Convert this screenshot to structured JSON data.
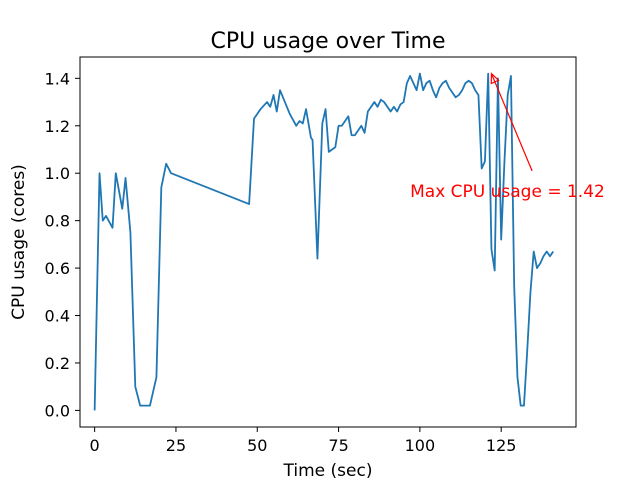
{
  "chart_data": {
    "type": "line",
    "title": "CPU usage over Time",
    "xlabel": "Time (sec)",
    "ylabel": "CPU usage (cores)",
    "xlim": [
      -4.5,
      148
    ],
    "ylim": [
      -0.07,
      1.49
    ],
    "x_ticks": [
      0,
      25,
      50,
      75,
      100,
      125
    ],
    "y_ticks": [
      0.0,
      0.2,
      0.4,
      0.6,
      0.8,
      1.0,
      1.2,
      1.4
    ],
    "x_tick_labels": [
      "0",
      "25",
      "50",
      "75",
      "100",
      "125"
    ],
    "y_tick_labels": [
      "0.0",
      "0.2",
      "0.4",
      "0.6",
      "0.8",
      "1.0",
      "1.2",
      "1.4"
    ],
    "grid": false,
    "series": [
      {
        "color": "#1f77b4",
        "x": [
          0,
          1.5,
          2.5,
          3.5,
          5.5,
          6.5,
          8.5,
          9.5,
          11,
          12.5,
          14,
          17,
          19,
          20.5,
          22,
          23.5,
          47.5,
          49,
          51,
          53,
          54,
          55,
          56,
          57,
          58.5,
          60,
          62,
          63,
          64,
          65,
          66.5,
          67,
          68.5,
          70,
          71,
          72,
          73,
          74,
          75,
          76,
          78,
          79,
          80,
          82,
          83,
          84,
          86,
          87,
          88,
          89,
          91,
          92,
          93,
          94,
          95,
          96,
          97,
          98,
          99,
          100,
          101,
          102,
          103,
          104,
          105,
          106,
          107,
          108,
          109,
          110,
          111,
          112,
          113,
          114,
          115,
          116,
          117,
          118,
          119,
          120,
          121,
          122,
          123,
          124,
          125,
          126,
          127,
          128,
          129,
          130,
          131,
          132,
          133,
          134,
          135,
          136,
          137,
          138,
          139,
          140,
          141
        ],
        "y": [
          0.0,
          1.0,
          0.8,
          0.82,
          0.77,
          1.0,
          0.85,
          0.98,
          0.75,
          0.1,
          0.02,
          0.02,
          0.14,
          0.94,
          1.04,
          1.0,
          0.87,
          1.23,
          1.27,
          1.3,
          1.28,
          1.33,
          1.26,
          1.35,
          1.3,
          1.25,
          1.2,
          1.22,
          1.21,
          1.27,
          1.15,
          1.14,
          0.64,
          1.21,
          1.27,
          1.09,
          1.1,
          1.11,
          1.2,
          1.2,
          1.24,
          1.16,
          1.16,
          1.2,
          1.17,
          1.26,
          1.3,
          1.28,
          1.31,
          1.3,
          1.26,
          1.28,
          1.26,
          1.29,
          1.3,
          1.38,
          1.41,
          1.38,
          1.35,
          1.42,
          1.35,
          1.38,
          1.39,
          1.35,
          1.32,
          1.36,
          1.38,
          1.39,
          1.36,
          1.34,
          1.32,
          1.33,
          1.35,
          1.38,
          1.39,
          1.38,
          1.35,
          1.33,
          1.02,
          1.05,
          1.42,
          0.68,
          0.59,
          1.4,
          0.72,
          1.05,
          1.33,
          1.41,
          0.52,
          0.14,
          0.02,
          0.02,
          0.25,
          0.5,
          0.67,
          0.6,
          0.62,
          0.65,
          0.67,
          0.65,
          0.67
        ],
        "x_override": [
          0,
          1.5,
          2.5,
          3.5,
          5.5,
          6.5,
          8.5,
          9.5,
          11,
          12.5,
          14,
          17,
          19,
          20.5,
          22,
          23.5,
          47.5,
          49,
          51,
          53,
          54,
          55,
          56,
          57,
          58.5,
          60,
          62,
          63,
          64,
          65,
          66.5,
          67,
          68.5,
          70,
          71,
          72,
          73,
          74,
          75,
          76,
          78,
          79,
          80,
          82,
          83,
          84,
          86,
          87,
          88,
          89,
          91,
          92,
          93,
          94,
          95,
          96,
          97,
          98,
          99,
          100,
          101,
          102,
          103,
          104,
          105,
          106,
          107,
          108,
          109,
          110,
          111,
          112,
          113,
          114,
          115,
          116,
          117,
          118,
          119,
          120,
          121,
          122,
          123,
          124,
          125,
          126,
          127,
          128,
          129,
          130,
          131,
          132,
          133,
          134,
          135,
          136,
          137,
          138,
          139,
          140,
          141
        ]
      }
    ],
    "annotation": {
      "text": "Max CPU usage = 1.42",
      "color": "#ff0000",
      "point": [
        122,
        1.42
      ],
      "text_pos": [
        97,
        0.9
      ]
    }
  }
}
